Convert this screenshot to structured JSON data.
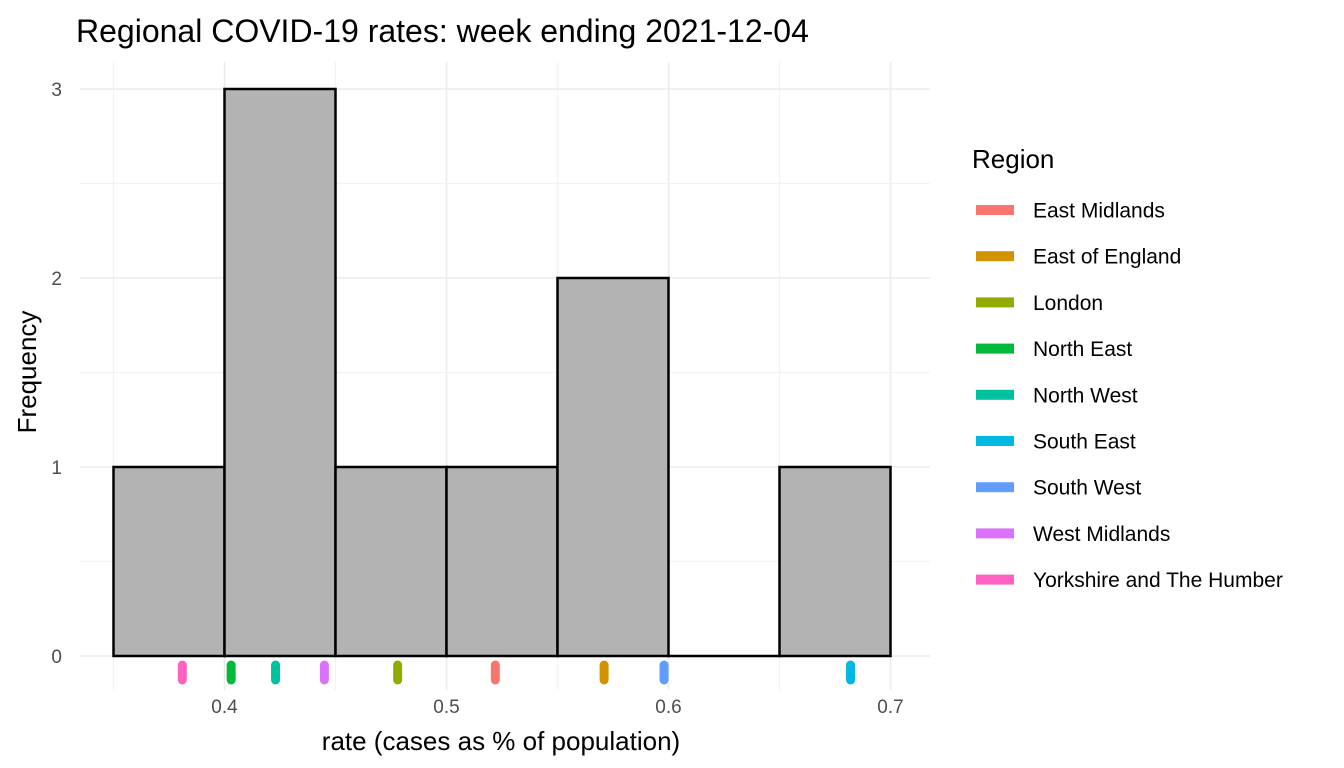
{
  "chart_data": {
    "type": "histogram",
    "title": "Regional COVID-19 rates: week ending 2021-12-04",
    "xlabel": "rate (cases as % of population)",
    "ylabel": "Frequency",
    "xlim": [
      0.35,
      0.7
    ],
    "ylim": [
      0,
      3
    ],
    "x_ticks": [
      0.4,
      0.5,
      0.6,
      0.7
    ],
    "x_tick_labels": [
      "0.4",
      "0.5",
      "0.6",
      "0.7"
    ],
    "y_ticks": [
      0,
      1,
      2,
      3
    ],
    "y_tick_labels": [
      "0",
      "1",
      "2",
      "3"
    ],
    "grid": true,
    "bins": [
      {
        "start": 0.35,
        "end": 0.4,
        "count": 1
      },
      {
        "start": 0.4,
        "end": 0.45,
        "count": 3
      },
      {
        "start": 0.45,
        "end": 0.5,
        "count": 1
      },
      {
        "start": 0.5,
        "end": 0.55,
        "count": 1
      },
      {
        "start": 0.55,
        "end": 0.6,
        "count": 2
      },
      {
        "start": 0.6,
        "end": 0.65,
        "count": 0
      },
      {
        "start": 0.65,
        "end": 0.7,
        "count": 1
      }
    ],
    "bar_fill": "#b3b3b3",
    "bar_outline": "#000000",
    "legend": {
      "title": "Region",
      "position": "right"
    },
    "series": [
      {
        "name": "East Midlands",
        "rate": 0.522,
        "color": "#F8766D"
      },
      {
        "name": "East of England",
        "rate": 0.571,
        "color": "#D39200"
      },
      {
        "name": "London",
        "rate": 0.478,
        "color": "#93AA00"
      },
      {
        "name": "North East",
        "rate": 0.403,
        "color": "#00BA38"
      },
      {
        "name": "North West",
        "rate": 0.423,
        "color": "#00C19F"
      },
      {
        "name": "South East",
        "rate": 0.682,
        "color": "#00B9E3"
      },
      {
        "name": "South West",
        "rate": 0.598,
        "color": "#619CFF"
      },
      {
        "name": "West Midlands",
        "rate": 0.445,
        "color": "#DB72FB"
      },
      {
        "name": "Yorkshire and The Humber",
        "rate": 0.381,
        "color": "#FF61C3"
      }
    ]
  }
}
